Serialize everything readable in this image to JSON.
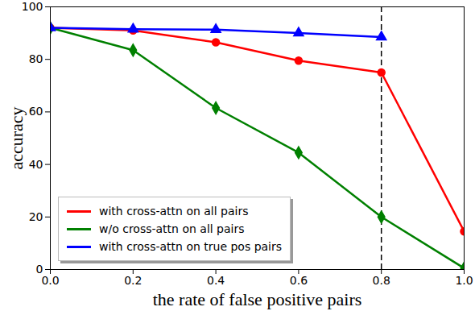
{
  "chart_data": {
    "type": "line",
    "x": [
      0,
      0.2,
      0.4,
      0.6,
      0.8,
      1.0
    ],
    "series": [
      {
        "name": "with cross-attn on all pairs",
        "color": "#ff0000",
        "marker": "circle",
        "line_style": "solid",
        "values": [
          92,
          91,
          86.5,
          79.5,
          75,
          14.5
        ]
      },
      {
        "name": "w/o cross-attn on all pairs",
        "color": "#008000",
        "marker": "diamond",
        "line_style": "solid",
        "values": [
          92,
          83.5,
          61.5,
          44.5,
          20,
          0.5
        ]
      },
      {
        "name": "with cross-attn on true pos pairs",
        "color": "#0000ff",
        "marker": "triangle",
        "line_style": "solid",
        "values": [
          92,
          91.5,
          91.3,
          90,
          88.5,
          null
        ]
      }
    ],
    "xlabel": "the rate of false positive pairs",
    "ylabel": "accuracy",
    "xlim": [
      0,
      1
    ],
    "ylim": [
      0,
      100
    ],
    "xticks": [
      {
        "value": 0,
        "label": "0.0"
      },
      {
        "value": 0.2,
        "label": "0.2"
      },
      {
        "value": 0.4,
        "label": "0.4"
      },
      {
        "value": 0.6,
        "label": "0.6"
      },
      {
        "value": 0.8,
        "label": "0.8"
      },
      {
        "value": 1.0,
        "label": "1.0"
      }
    ],
    "yticks": [
      0,
      20,
      40,
      60,
      80,
      100
    ],
    "grid": false,
    "legend": "lower left",
    "reference_line": {
      "x": 0.8,
      "line_style": "dashed"
    }
  }
}
